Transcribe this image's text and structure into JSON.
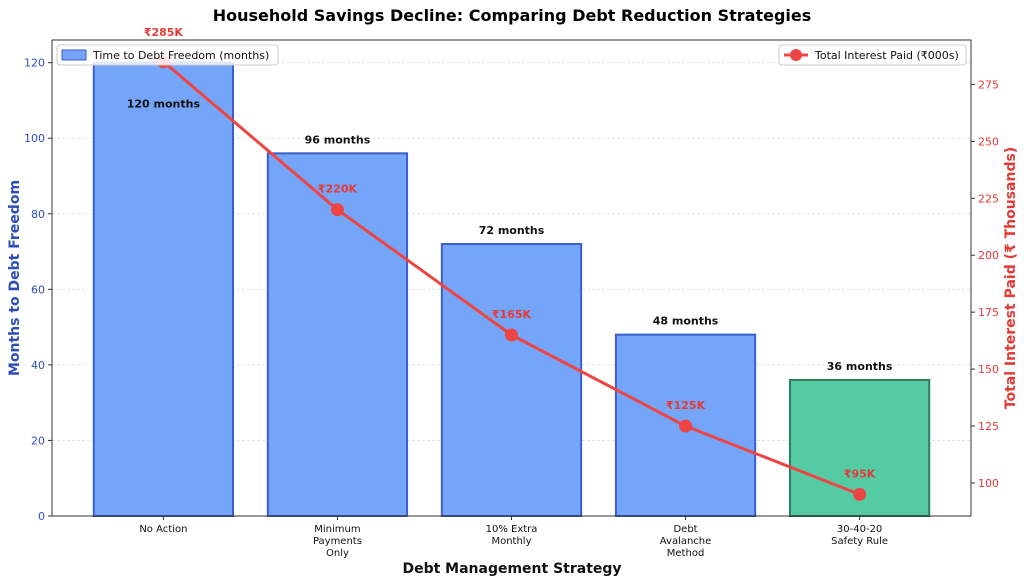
{
  "chart_data": {
    "type": "bar+line",
    "title": "Household Savings Decline: Comparing Debt Reduction Strategies",
    "xlabel": "Debt Management Strategy",
    "ylabel_left": "Months to Debt Freedom",
    "ylabel_right": "Total Interest Paid (₹ Thousands)",
    "categories": [
      [
        "No Action"
      ],
      [
        "Minimum",
        "Payments",
        "Only"
      ],
      [
        "10% Extra",
        "Monthly"
      ],
      [
        "Debt",
        "Avalanche",
        "Method"
      ],
      [
        "30-40-20",
        "Safety Rule"
      ]
    ],
    "bar_series": {
      "name": "Time to Debt Freedom (months)",
      "values": [
        120,
        96,
        72,
        48,
        36
      ],
      "labels": [
        "120 months",
        "96 months",
        "72 months",
        "48 months",
        "36 months"
      ],
      "colors": [
        "#74a5f8",
        "#74a5f8",
        "#74a5f8",
        "#74a5f8",
        "#55cba4"
      ],
      "edge_colors": [
        "#3a5fcd",
        "#3a5fcd",
        "#3a5fcd",
        "#3a5fcd",
        "#2e7d5b"
      ]
    },
    "line_series": {
      "name": "Total Interest Paid (₹000s)",
      "values": [
        285,
        220,
        165,
        125,
        95
      ],
      "labels": [
        "₹285K",
        "₹220K",
        "₹165K",
        "₹125K",
        "₹95K"
      ],
      "color": "#ef4444"
    },
    "ylim_left": [
      0,
      126
    ],
    "yticks_left": [
      0,
      20,
      40,
      60,
      80,
      100,
      120
    ],
    "ylim_right": [
      85.5,
      294.5
    ],
    "yticks_right": [
      100,
      125,
      150,
      175,
      200,
      225,
      250,
      275
    ],
    "left_axis_color": "#2f4fb8",
    "right_axis_color": "#e53935",
    "grid": true,
    "legend_bar": "top-left",
    "legend_line": "top-right"
  }
}
